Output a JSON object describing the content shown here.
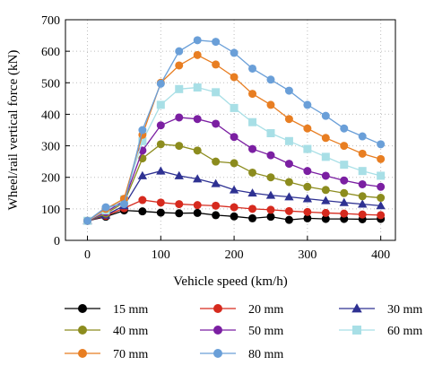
{
  "chart_data": {
    "type": "line",
    "xlabel": "Vehicle speed (km/h)",
    "ylabel": "Wheel/rail vertical force (kN)",
    "xlim": [
      -30,
      420
    ],
    "ylim": [
      0,
      700
    ],
    "xticks": [
      0,
      100,
      200,
      300,
      400
    ],
    "yticks": [
      0,
      100,
      200,
      300,
      400,
      500,
      600,
      700
    ],
    "grid": true,
    "legend_position": "bottom",
    "x": [
      0,
      25,
      50,
      75,
      100,
      125,
      150,
      175,
      200,
      225,
      250,
      275,
      300,
      325,
      350,
      375,
      400
    ],
    "series": [
      {
        "name": "15 mm",
        "color": "#000000",
        "marker": "circle",
        "values": [
          62,
          75,
          95,
          92,
          88,
          86,
          87,
          80,
          76,
          70,
          75,
          65,
          70,
          68,
          68,
          67,
          68
        ]
      },
      {
        "name": "20 mm",
        "color": "#d62a1e",
        "marker": "circle",
        "values": [
          62,
          78,
          102,
          128,
          120,
          115,
          112,
          110,
          105,
          100,
          97,
          93,
          90,
          87,
          85,
          82,
          80
        ]
      },
      {
        "name": "30 mm",
        "color": "#2e3192",
        "marker": "triangle",
        "values": [
          62,
          80,
          110,
          205,
          220,
          205,
          195,
          180,
          160,
          150,
          143,
          138,
          132,
          126,
          120,
          115,
          110
        ]
      },
      {
        "name": "40 mm",
        "color": "#8c8c1e",
        "marker": "circle",
        "values": [
          62,
          85,
          120,
          260,
          305,
          300,
          285,
          250,
          245,
          215,
          200,
          185,
          170,
          160,
          150,
          140,
          135
        ]
      },
      {
        "name": "50 mm",
        "color": "#7b1fa2",
        "marker": "circle",
        "values": [
          62,
          90,
          125,
          285,
          365,
          390,
          385,
          370,
          328,
          290,
          270,
          243,
          220,
          205,
          190,
          178,
          170
        ]
      },
      {
        "name": "60 mm",
        "color": "#a8dfe6",
        "marker": "square",
        "values": [
          62,
          95,
          130,
          315,
          430,
          480,
          485,
          470,
          420,
          375,
          340,
          315,
          290,
          265,
          240,
          220,
          205
        ]
      },
      {
        "name": "70 mm",
        "color": "#e87e22",
        "marker": "circle",
        "values": [
          62,
          100,
          132,
          335,
          500,
          555,
          588,
          558,
          518,
          465,
          430,
          385,
          355,
          325,
          300,
          275,
          258
        ]
      },
      {
        "name": "80 mm",
        "color": "#6a9fd8",
        "marker": "circle",
        "values": [
          62,
          105,
          115,
          350,
          497,
          600,
          635,
          630,
          595,
          545,
          510,
          475,
          430,
          395,
          355,
          330,
          305
        ]
      }
    ]
  }
}
